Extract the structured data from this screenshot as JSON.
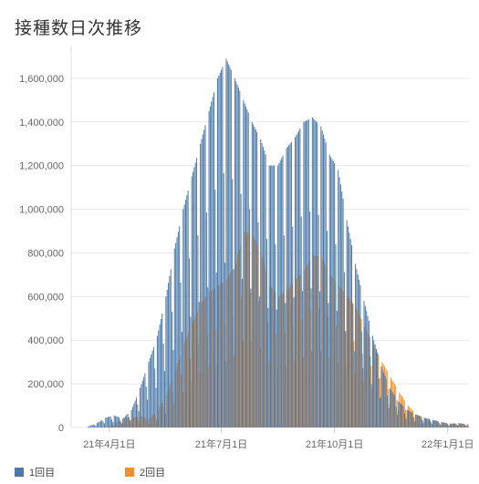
{
  "title": "接種数日次推移",
  "colors": {
    "dose1": "#4e79a7",
    "dose2": "#f28e2b",
    "peak": "#c8c8c8",
    "grid": "#e9e9e9"
  },
  "chart_data": {
    "type": "bar",
    "title": "接種数日次推移",
    "xlabel": "",
    "ylabel": "",
    "ylim": [
      0,
      1750000
    ],
    "x_range": [
      "2021-03-01",
      "2022-01-19"
    ],
    "y_ticks": [
      0,
      200000,
      400000,
      600000,
      800000,
      1000000,
      1200000,
      1400000,
      1600000
    ],
    "y_tick_labels": [
      "0",
      "200,000",
      "400,000",
      "600,000",
      "800,000",
      "1,000,000",
      "1,200,000",
      "1,400,000",
      "1,600,000"
    ],
    "x_tick_labels": [
      "21年4月1日",
      "21年7月1日",
      "21年10月1日",
      "22年1月1日"
    ],
    "x_tick_dates": [
      "2021-04-01",
      "2021-07-01",
      "2021-10-01",
      "2022-01-01"
    ],
    "series": [
      {
        "name": "1回目",
        "points": [
          [
            "2021-03-15",
            5000
          ],
          [
            "2021-03-22",
            20000
          ],
          [
            "2021-03-29",
            45000
          ],
          [
            "2021-04-05",
            55000
          ],
          [
            "2021-04-12",
            40000
          ],
          [
            "2021-04-19",
            80000
          ],
          [
            "2021-04-26",
            180000
          ],
          [
            "2021-05-03",
            300000
          ],
          [
            "2021-05-10",
            420000
          ],
          [
            "2021-05-17",
            600000
          ],
          [
            "2021-05-24",
            820000
          ],
          [
            "2021-05-31",
            1000000
          ],
          [
            "2021-06-07",
            1150000
          ],
          [
            "2021-06-14",
            1300000
          ],
          [
            "2021-06-21",
            1450000
          ],
          [
            "2021-06-28",
            1600000
          ],
          [
            "2021-07-05",
            1690000
          ],
          [
            "2021-07-12",
            1600000
          ],
          [
            "2021-07-19",
            1500000
          ],
          [
            "2021-07-26",
            1400000
          ],
          [
            "2021-08-02",
            1320000
          ],
          [
            "2021-08-09",
            1200000
          ],
          [
            "2021-08-16",
            1200000
          ],
          [
            "2021-08-23",
            1280000
          ],
          [
            "2021-08-30",
            1330000
          ],
          [
            "2021-09-06",
            1400000
          ],
          [
            "2021-09-13",
            1420000
          ],
          [
            "2021-09-20",
            1380000
          ],
          [
            "2021-09-27",
            1250000
          ],
          [
            "2021-10-04",
            1180000
          ],
          [
            "2021-10-11",
            950000
          ],
          [
            "2021-10-18",
            750000
          ],
          [
            "2021-10-25",
            580000
          ],
          [
            "2021-11-01",
            420000
          ],
          [
            "2021-11-08",
            280000
          ],
          [
            "2021-11-15",
            180000
          ],
          [
            "2021-11-22",
            120000
          ],
          [
            "2021-11-29",
            80000
          ],
          [
            "2021-12-06",
            60000
          ],
          [
            "2021-12-13",
            45000
          ],
          [
            "2021-12-20",
            35000
          ],
          [
            "2021-12-27",
            25000
          ],
          [
            "2022-01-03",
            18000
          ],
          [
            "2022-01-10",
            20000
          ],
          [
            "2022-01-17",
            15000
          ]
        ]
      },
      {
        "name": "2回目",
        "points": [
          [
            "2021-03-15",
            0
          ],
          [
            "2021-03-22",
            0
          ],
          [
            "2021-03-29",
            0
          ],
          [
            "2021-04-05",
            20000
          ],
          [
            "2021-04-12",
            40000
          ],
          [
            "2021-04-19",
            45000
          ],
          [
            "2021-04-26",
            50000
          ],
          [
            "2021-05-03",
            40000
          ],
          [
            "2021-05-10",
            80000
          ],
          [
            "2021-05-17",
            150000
          ],
          [
            "2021-05-24",
            260000
          ],
          [
            "2021-05-31",
            380000
          ],
          [
            "2021-06-07",
            480000
          ],
          [
            "2021-06-14",
            570000
          ],
          [
            "2021-06-21",
            620000
          ],
          [
            "2021-06-28",
            650000
          ],
          [
            "2021-07-05",
            680000
          ],
          [
            "2021-07-12",
            750000
          ],
          [
            "2021-07-19",
            900000
          ],
          [
            "2021-07-26",
            880000
          ],
          [
            "2021-08-02",
            800000
          ],
          [
            "2021-08-09",
            650000
          ],
          [
            "2021-08-16",
            600000
          ],
          [
            "2021-08-23",
            630000
          ],
          [
            "2021-08-30",
            680000
          ],
          [
            "2021-09-06",
            720000
          ],
          [
            "2021-09-13",
            790000
          ],
          [
            "2021-09-20",
            780000
          ],
          [
            "2021-09-27",
            700000
          ],
          [
            "2021-10-04",
            650000
          ],
          [
            "2021-10-11",
            600000
          ],
          [
            "2021-10-18",
            550000
          ],
          [
            "2021-10-25",
            460000
          ],
          [
            "2021-11-01",
            380000
          ],
          [
            "2021-11-08",
            300000
          ],
          [
            "2021-11-15",
            230000
          ],
          [
            "2021-11-22",
            160000
          ],
          [
            "2021-11-29",
            100000
          ],
          [
            "2021-12-06",
            60000
          ],
          [
            "2021-12-13",
            40000
          ],
          [
            "2021-12-20",
            30000
          ],
          [
            "2021-12-27",
            20000
          ],
          [
            "2022-01-03",
            15000
          ],
          [
            "2022-01-10",
            18000
          ],
          [
            "2022-01-17",
            12000
          ]
        ]
      }
    ],
    "legend_position": "bottom-left",
    "grid": true
  }
}
